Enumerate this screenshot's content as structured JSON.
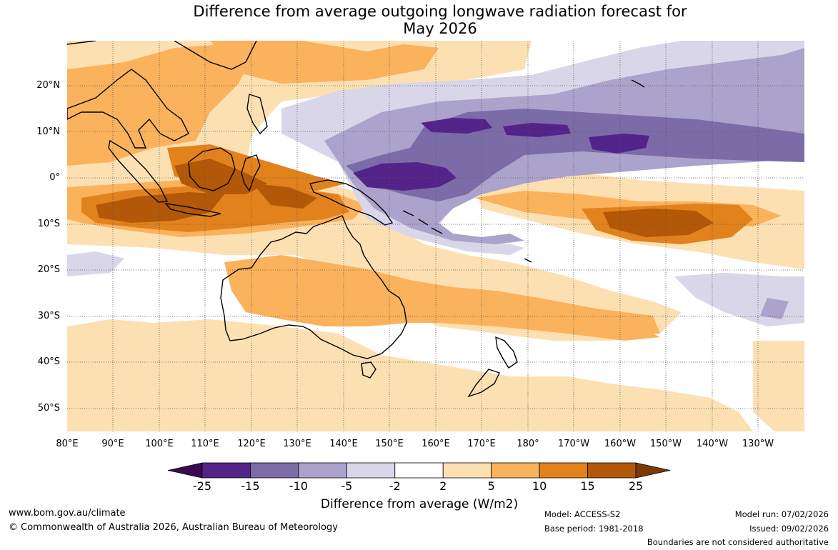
{
  "title": {
    "line1": "Difference from average outgoing longwave radiation forecast for",
    "line2": "May 2026"
  },
  "map": {
    "lat_labels": [
      "20°N",
      "10°N",
      "0°",
      "10°S",
      "20°S",
      "30°S",
      "40°S",
      "50°S"
    ],
    "lon_labels": [
      "80°E",
      "90°E",
      "100°E",
      "110°E",
      "120°E",
      "130°E",
      "140°E",
      "150°E",
      "160°E",
      "170°E",
      "180°",
      "170°W",
      "160°W",
      "150°W",
      "140°W",
      "130°W"
    ]
  },
  "legend": {
    "title": "Difference from average (W/m2)",
    "ticks": [
      "-25",
      "-15",
      "-10",
      "-5",
      "-2",
      "2",
      "5",
      "10",
      "15",
      "25"
    ],
    "colors": [
      "#3c0a52",
      "#54238a",
      "#7b6ca8",
      "#aba3cc",
      "#d8d6e8",
      "#ffffff",
      "#fde0b2",
      "#fbb25c",
      "#e2821c",
      "#b35808",
      "#7a3a08"
    ]
  },
  "footer": {
    "website": "www.bom.gov.au/climate",
    "copyright": "© Commonwealth of Australia 2026, Australian Bureau of Meteorology",
    "model": "Model: ACCESS-S2",
    "base_period": "Base period: 1981-2018",
    "model_run": "Model run: 07/02/2026",
    "issued": "Issued: 09/02/2026",
    "disclaimer": "Boundaries are not considered authoritative"
  }
}
